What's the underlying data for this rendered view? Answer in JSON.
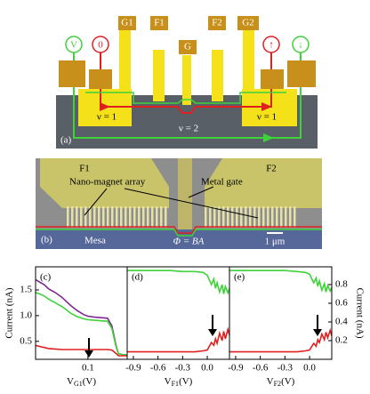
{
  "panel_a": {
    "label": "(a)",
    "contacts": [
      "V",
      "0",
      "↑",
      "↓"
    ],
    "gates": [
      "G1",
      "F1",
      "G",
      "F2",
      "G2"
    ],
    "fillings": [
      "ν = 1",
      "ν = 1",
      "ν = 2"
    ]
  },
  "panel_b": {
    "label": "(b)",
    "f1": "F1",
    "f2": "F2",
    "array": "Nano-magnet array",
    "gate": "Metal gate",
    "mesa": "Mesa",
    "flux": "Φ = BA",
    "scale": "1 μm"
  },
  "chart_data": [
    {
      "type": "line",
      "label": "(c)",
      "xlabel": [
        "V",
        "G1",
        "(V)"
      ],
      "ylabel": "Current (nA)",
      "yaxis": "left",
      "xlim": [
        -0.14,
        0.28
      ],
      "xticks": [
        0.1
      ],
      "ylim": [
        0.15,
        1.95
      ],
      "yticks": [
        0.5,
        {
          "value": 1,
          "label": "1.0"
        },
        1.5
      ],
      "x": [
        -0.14,
        -0.12,
        -0.1,
        -0.08,
        -0.05,
        -0.02,
        0.0,
        0.02,
        0.05,
        0.08,
        0.1,
        0.13,
        0.16,
        0.19,
        0.21,
        0.23,
        0.24,
        0.26,
        0.28
      ],
      "series": [
        {
          "color": "#7b2a8f",
          "values": [
            1.7,
            1.65,
            1.6,
            1.52,
            1.45,
            1.36,
            1.28,
            1.2,
            1.1,
            1.02,
            0.99,
            0.97,
            0.96,
            0.95,
            0.8,
            0.4,
            0.26,
            0.24,
            0.24
          ]
        },
        {
          "color": "#3fd23a",
          "values": [
            1.45,
            1.42,
            1.38,
            1.32,
            1.25,
            1.18,
            1.12,
            1.05,
            0.98,
            0.94,
            0.92,
            0.91,
            0.9,
            0.89,
            0.75,
            0.38,
            0.26,
            0.24,
            0.24
          ]
        },
        {
          "color": "#e02020",
          "values": [
            0.42,
            0.4,
            0.38,
            0.36,
            0.35,
            0.34,
            0.34,
            0.34,
            0.34,
            0.34,
            0.34,
            0.34,
            0.34,
            0.34,
            0.33,
            0.26,
            0.22,
            0.22,
            0.22
          ]
        }
      ]
    },
    {
      "type": "line",
      "label": "(d)",
      "xlabel": [
        "V",
        "F1",
        "(V)"
      ],
      "xlim": [
        -0.975,
        0.27
      ],
      "xticks": [
        -0.9,
        -0.6,
        -0.3,
        {
          "value": 0,
          "label": "0.0"
        }
      ],
      "ylim": [
        0,
        0.99
      ],
      "x": [
        -0.975,
        -0.9,
        -0.75,
        -0.6,
        -0.45,
        -0.3,
        -0.15,
        -0.05,
        0.0,
        0.05,
        0.08,
        0.1,
        0.12,
        0.15,
        0.18,
        0.2,
        0.22,
        0.25,
        0.27
      ],
      "series": [
        {
          "color": "#3fd23a",
          "values": [
            0.95,
            0.95,
            0.95,
            0.95,
            0.95,
            0.94,
            0.94,
            0.93,
            0.9,
            0.8,
            0.86,
            0.76,
            0.82,
            0.72,
            0.8,
            0.7,
            0.78,
            0.71,
            0.76
          ]
        },
        {
          "color": "#e02020",
          "values": [
            0.08,
            0.08,
            0.08,
            0.08,
            0.08,
            0.08,
            0.08,
            0.09,
            0.1,
            0.18,
            0.15,
            0.22,
            0.17,
            0.28,
            0.2,
            0.3,
            0.22,
            0.32,
            0.26
          ]
        }
      ]
    },
    {
      "type": "line",
      "label": "(e)",
      "xlabel": [
        "V",
        "F2",
        "(V)"
      ],
      "ylabel": "Current (nA)",
      "yaxis": "right",
      "xlim": [
        -0.975,
        0.27
      ],
      "xticks": [
        -0.9,
        -0.6,
        -0.3,
        {
          "value": 0,
          "label": "0.0"
        }
      ],
      "ylim": [
        0,
        0.99
      ],
      "yticks": [
        0.2,
        0.4,
        0.6,
        0.8
      ],
      "x": [
        -0.975,
        -0.9,
        -0.75,
        -0.6,
        -0.45,
        -0.3,
        -0.15,
        -0.05,
        0.0,
        0.05,
        0.08,
        0.1,
        0.12,
        0.15,
        0.18,
        0.2,
        0.22,
        0.25,
        0.27
      ],
      "series": [
        {
          "color": "#3fd23a",
          "values": [
            0.95,
            0.95,
            0.95,
            0.95,
            0.95,
            0.95,
            0.94,
            0.93,
            0.91,
            0.82,
            0.87,
            0.78,
            0.84,
            0.74,
            0.81,
            0.72,
            0.79,
            0.73,
            0.77
          ]
        },
        {
          "color": "#e02020",
          "values": [
            0.08,
            0.08,
            0.08,
            0.08,
            0.08,
            0.08,
            0.08,
            0.09,
            0.1,
            0.17,
            0.14,
            0.21,
            0.18,
            0.27,
            0.21,
            0.29,
            0.23,
            0.31,
            0.25
          ]
        }
      ]
    }
  ]
}
